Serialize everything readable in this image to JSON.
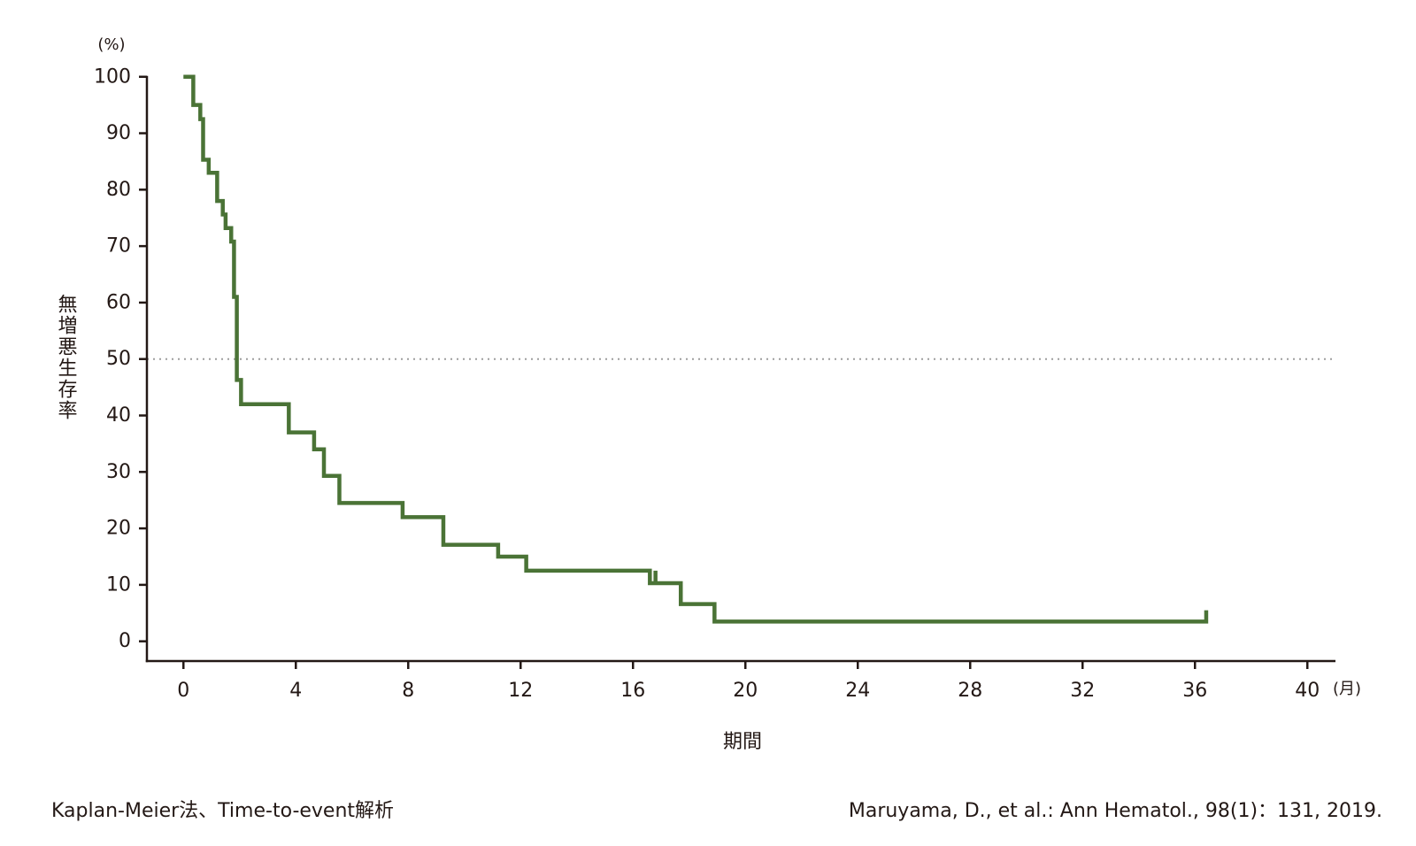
{
  "chart_data": {
    "type": "line",
    "step": true,
    "x_ticks": [
      0,
      4,
      8,
      12,
      16,
      20,
      24,
      28,
      32,
      36,
      40
    ],
    "y_ticks": [
      0,
      10,
      20,
      30,
      40,
      50,
      60,
      70,
      80,
      90,
      100
    ],
    "xlim": [
      -1.3,
      41
    ],
    "ylim": [
      -3.5,
      102
    ],
    "xlabel": "期間",
    "ylabel": "無増悪生存率",
    "x_unit": "(月)",
    "y_unit": "(%)",
    "reference_line": {
      "y": 50,
      "style": "dotted",
      "color": "#9e9e9e"
    },
    "grid": false,
    "legend": "none",
    "series": [
      {
        "color": "#4a7336",
        "points": [
          [
            0,
            100
          ],
          [
            0.35,
            100
          ],
          [
            0.35,
            95
          ],
          [
            0.6,
            95
          ],
          [
            0.6,
            92.5
          ],
          [
            0.7,
            92.5
          ],
          [
            0.7,
            85.3
          ],
          [
            0.9,
            85.3
          ],
          [
            0.9,
            83
          ],
          [
            1.2,
            83
          ],
          [
            1.2,
            78
          ],
          [
            1.4,
            78
          ],
          [
            1.4,
            75.6
          ],
          [
            1.5,
            75.6
          ],
          [
            1.5,
            73.2
          ],
          [
            1.7,
            73.2
          ],
          [
            1.7,
            70.8
          ],
          [
            1.8,
            70.8
          ],
          [
            1.8,
            61
          ],
          [
            1.9,
            61
          ],
          [
            1.9,
            46.3
          ],
          [
            2.05,
            46.3
          ],
          [
            2.05,
            42
          ],
          [
            3.75,
            42
          ],
          [
            3.75,
            37
          ],
          [
            4.65,
            37
          ],
          [
            4.65,
            34
          ],
          [
            5.0,
            34
          ],
          [
            5.0,
            29.3
          ],
          [
            5.55,
            29.3
          ],
          [
            5.55,
            24.5
          ],
          [
            7.8,
            24.5
          ],
          [
            7.8,
            22
          ],
          [
            9.25,
            22
          ],
          [
            9.25,
            17.1
          ],
          [
            11.2,
            17.1
          ],
          [
            11.2,
            15
          ],
          [
            12.2,
            15
          ],
          [
            12.2,
            12.5
          ],
          [
            16.6,
            12.5
          ],
          [
            16.6,
            10.3
          ],
          [
            16.8,
            10.3
          ],
          [
            16.8,
            12.5
          ],
          [
            16.8,
            10.3
          ],
          [
            17.7,
            10.3
          ],
          [
            17.7,
            6.6
          ],
          [
            18.9,
            6.6
          ],
          [
            18.9,
            3.5
          ],
          [
            36.4,
            3.5
          ],
          [
            36.4,
            5.5
          ]
        ]
      }
    ]
  },
  "footer": {
    "left": "Kaplan-Meier法、Time-to-event解析",
    "right": "Maruyama, D., et al.: Ann Hematol., 98(1)：131, 2019."
  }
}
